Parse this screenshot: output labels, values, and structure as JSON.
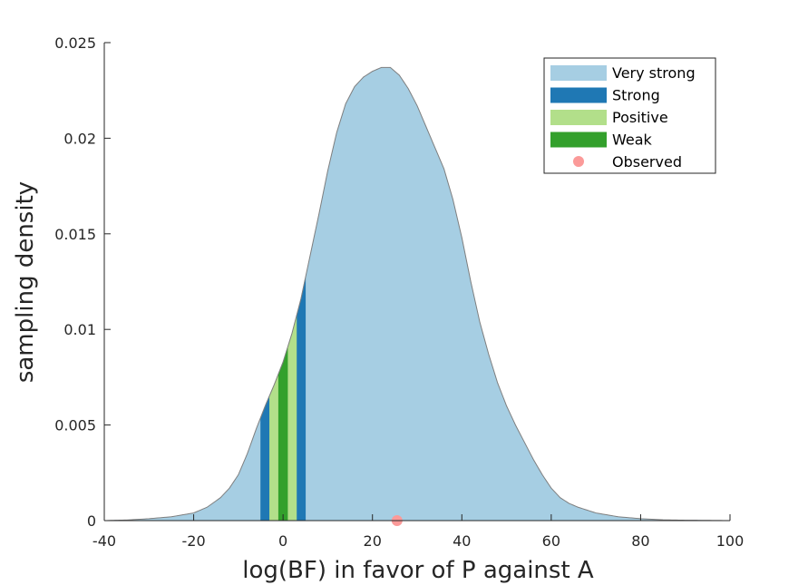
{
  "chart_data": {
    "type": "area",
    "title": "",
    "xlabel": "log(BF) in favor of P against A",
    "ylabel": "sampling density",
    "xlim": [
      -40,
      100
    ],
    "ylim": [
      0,
      0.025
    ],
    "xticks": [
      -40,
      -20,
      0,
      20,
      40,
      60,
      80,
      100
    ],
    "xtick_labels": [
      "-40",
      "-20",
      "0",
      "20",
      "40",
      "60",
      "80",
      "100"
    ],
    "yticks": [
      0,
      0.005,
      0.01,
      0.015,
      0.02,
      0.025
    ],
    "ytick_labels": [
      "0",
      "0.005",
      "0.01",
      "0.015",
      "0.02",
      "0.025"
    ],
    "grid": false,
    "legend_position": "top-right",
    "density_curve": {
      "x": [
        -40,
        -35,
        -30,
        -25,
        -20,
        -17,
        -14,
        -12,
        -10,
        -8,
        -6,
        -4,
        -2,
        0,
        2,
        4,
        6,
        8,
        10,
        12,
        14,
        16,
        18,
        20,
        22,
        24,
        26,
        28,
        30,
        32,
        34,
        36,
        38,
        40,
        42,
        44,
        46,
        48,
        50,
        52,
        54,
        56,
        58,
        60,
        62,
        64,
        66,
        70,
        75,
        80,
        85,
        90,
        95,
        100
      ],
      "y": [
        0.0,
        3e-05,
        0.0001,
        0.0002,
        0.0004,
        0.0007,
        0.0012,
        0.0017,
        0.0024,
        0.0035,
        0.0048,
        0.006,
        0.0071,
        0.0083,
        0.0098,
        0.0116,
        0.0138,
        0.016,
        0.0183,
        0.0203,
        0.0218,
        0.0227,
        0.0232,
        0.0235,
        0.0237,
        0.0237,
        0.0233,
        0.0226,
        0.0217,
        0.0206,
        0.0195,
        0.0184,
        0.0168,
        0.0148,
        0.0125,
        0.0104,
        0.0087,
        0.0072,
        0.006,
        0.005,
        0.0041,
        0.0032,
        0.0024,
        0.0017,
        0.0012,
        0.0009,
        0.0007,
        0.0004,
        0.0002,
        0.0001,
        4e-05,
        2e-05,
        1e-05,
        0.0
      ]
    },
    "series": [
      {
        "name": "Very strong",
        "color": "#a6cee3",
        "x_ranges": [
          [
            -40,
            -5
          ],
          [
            5,
            100
          ]
        ]
      },
      {
        "name": "Strong",
        "color": "#1f78b4",
        "x_ranges": [
          [
            -5,
            -3
          ],
          [
            3,
            5
          ]
        ]
      },
      {
        "name": "Positive",
        "color": "#b2df8a",
        "x_ranges": [
          [
            -3,
            -1
          ],
          [
            1,
            3
          ]
        ]
      },
      {
        "name": "Weak",
        "color": "#33a02c",
        "x_ranges": [
          [
            -1,
            1
          ]
        ]
      }
    ],
    "observed": {
      "name": "Observed",
      "x": 25.5,
      "y": 0,
      "color": "#fb9a99"
    }
  }
}
